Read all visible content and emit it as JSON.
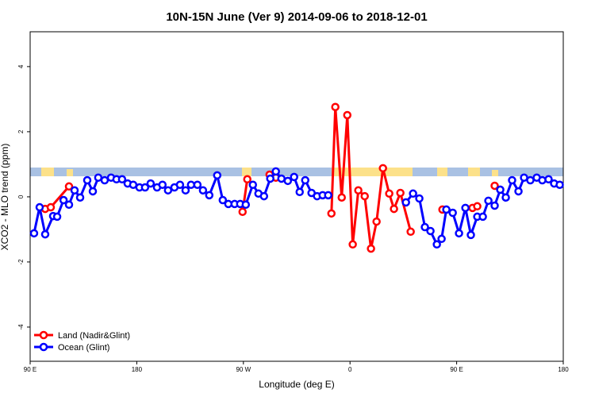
{
  "chart_data": {
    "type": "line",
    "title": "10N-15N June (Ver 9)   2014-09-06 to 2018-12-01",
    "x_label": "Longitude (deg E)",
    "y_label": "XCO2 - MLO trend (ppm)",
    "xlim": [
      90,
      540
    ],
    "xticks": [
      {
        "value": 90,
        "label": "90 E"
      },
      180,
      {
        "value": 270,
        "label": "90 W"
      },
      {
        "value": 360,
        "label": "0"
      },
      {
        "value": 450,
        "label": "90 E"
      },
      {
        "value": 540,
        "label": "180"
      }
    ],
    "ylim": [
      -5.05,
      5.07
    ],
    "yticks": [
      -4,
      -2,
      0,
      2,
      4
    ],
    "legend": "bottomleft",
    "series": [
      {
        "name": "Land (Nadir&Glint)",
        "color": "#ff0000",
        "x": [
          102.7,
          107.4,
          122.8,
          null,
          269.3,
          273.3,
          null,
          292.1,
          297.4,
          null,
          344.3,
          347.6,
          353.0,
          357.7,
          362.3,
          367.0,
          372.4,
          377.7,
          382.4,
          387.8,
          393.1,
          397.1,
          402.5,
          411.2,
          null,
          438.0,
          null,
          463.4,
          467.4,
          null,
          482.1
        ],
        "values": [
          -0.37,
          -0.32,
          0.32,
          null,
          -0.46,
          0.54,
          null,
          0.68,
          0.59,
          null,
          -0.51,
          2.76,
          -0.02,
          2.51,
          -1.46,
          0.2,
          0.02,
          -1.59,
          -0.76,
          0.88,
          0.1,
          -0.37,
          0.12,
          -1.07,
          null,
          -0.39,
          null,
          -0.34,
          -0.29,
          null,
          0.34
        ]
      },
      {
        "name": "Ocean (Glint)",
        "color": "#0000ff",
        "x": [
          93.3,
          98.0,
          102.7,
          109.4,
          112.8,
          118.2,
          122.8,
          127.5,
          132.2,
          138.2,
          142.9,
          147.5,
          152.9,
          158.3,
          162.9,
          167.6,
          172.3,
          177.0,
          182.3,
          187.0,
          191.7,
          197.1,
          201.7,
          206.4,
          211.8,
          216.5,
          221.2,
          225.8,
          231.2,
          235.9,
          241.2,
          247.9,
          252.6,
          257.3,
          262.6,
          267.3,
          272.0,
          278.0,
          282.7,
          287.4,
          292.7,
          297.4,
          302.1,
          307.5,
          312.8,
          317.5,
          322.2,
          327.5,
          332.2,
          336.9,
          341.6,
          null,
          407.2,
          413.2,
          418.5,
          423.2,
          427.9,
          433.3,
          437.3,
          441.3,
          446.7,
          452.0,
          457.4,
          462.0,
          467.4,
          472.1,
          476.8,
          482.1,
          486.8,
          491.5,
          496.8,
          502.2,
          506.9,
          512.2,
          517.6,
          522.3,
          527.6,
          532.3,
          537.0
        ],
        "values": [
          -1.12,
          -0.32,
          -1.15,
          -0.59,
          -0.61,
          -0.1,
          -0.24,
          0.2,
          -0.02,
          0.51,
          0.17,
          0.59,
          0.51,
          0.59,
          0.54,
          0.54,
          0.41,
          0.37,
          0.29,
          0.29,
          0.41,
          0.29,
          0.37,
          0.2,
          0.29,
          0.37,
          0.2,
          0.37,
          0.37,
          0.2,
          0.05,
          0.66,
          -0.1,
          -0.22,
          -0.22,
          -0.22,
          -0.24,
          0.37,
          0.1,
          0.02,
          0.56,
          0.78,
          0.56,
          0.49,
          0.61,
          0.15,
          0.51,
          0.12,
          0.02,
          0.05,
          0.05,
          null,
          -0.17,
          0.1,
          -0.05,
          -0.93,
          -1.05,
          -1.46,
          -1.29,
          -0.39,
          -0.49,
          -1.12,
          -0.34,
          -1.17,
          -0.61,
          -0.61,
          -0.12,
          -0.27,
          0.22,
          -0.02,
          0.51,
          0.17,
          0.59,
          0.51,
          0.59,
          0.51,
          0.54,
          0.41,
          0.37
        ]
      }
    ]
  }
}
